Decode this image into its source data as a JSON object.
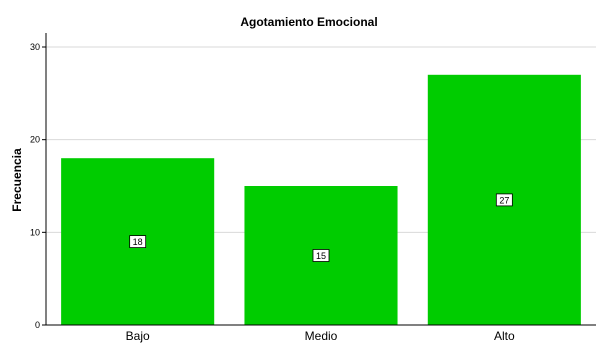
{
  "chart_data": {
    "type": "bar",
    "title": "Agotamiento Emocional",
    "xlabel": "",
    "ylabel": "Frecuencia",
    "categories": [
      "Bajo",
      "Medio",
      "Alto"
    ],
    "values": [
      18,
      15,
      27
    ],
    "data_labels": [
      "18",
      "15",
      "27"
    ],
    "ylim": [
      0,
      30
    ],
    "yticks": [
      0,
      10,
      20,
      30
    ],
    "ytick_labels": [
      "0",
      "10",
      "20",
      "30"
    ],
    "grid": true,
    "legend": "none",
    "bar_color": "#00cc00",
    "grid_color": "#d9d9d9"
  }
}
